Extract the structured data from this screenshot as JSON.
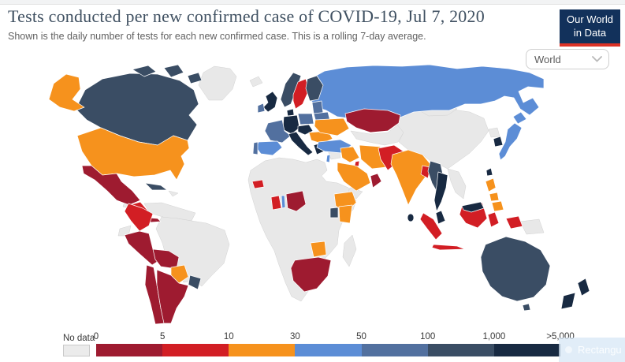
{
  "header": {
    "title": "Tests conducted per new confirmed case of COVID-19, Jul 7, 2020",
    "subtitle": "Shown is the daily number of tests for each new confirmed case. This is a rolling 7-day average.",
    "logo_line1": "Our World",
    "logo_line2": "in Data",
    "logo_bg": "#12315b",
    "logo_accent": "#dc3226"
  },
  "controls": {
    "region_value": "World"
  },
  "legend": {
    "no_data_label": "No data",
    "tick_labels": [
      "0",
      "5",
      "10",
      "30",
      "50",
      "100",
      "1,000",
      ">5,000"
    ]
  },
  "overlay": {
    "watermark_label": "Rectangu"
  },
  "chart_data": {
    "type": "choropleth_map",
    "title": "Tests conducted per new confirmed case of COVID-19",
    "date": "Jul 7, 2020",
    "metric": "Daily number of tests for each new confirmed case, rolling 7-day average",
    "no_data": {
      "label": "No data",
      "color": "#e8e8e8"
    },
    "legend_bins": [
      {
        "key": "0-5",
        "color": "#9e1b30"
      },
      {
        "key": "5-10",
        "color": "#d21e24"
      },
      {
        "key": "10-30",
        "color": "#f6921d"
      },
      {
        "key": "30-50",
        "color": "#5c8dd6"
      },
      {
        "key": "50-100",
        "color": "#52709f"
      },
      {
        "key": "100-1000",
        "color": "#3a4d64"
      },
      {
        "key": "1000+",
        "color": "#182a42"
      }
    ],
    "countries": {
      "greenland": "no-data",
      "iceland": "no-data",
      "canada": "100-1000",
      "united_states": "10-30",
      "mexico": "0-5",
      "cuba": "100-1000",
      "hispaniola": "no-data",
      "guatemala": "no-data",
      "el_salvador": "10-30",
      "central_america": "5-10",
      "panama": "0-5",
      "colombia": "5-10",
      "venezuela_guyanas": "no-data",
      "ecuador": "no-data",
      "brazil": "no-data",
      "peru": "0-5",
      "bolivia": "0-5",
      "paraguay": "10-30",
      "uruguay": "100-1000",
      "chile": "0-5",
      "argentina": "0-5",
      "united_kingdom": "1000+",
      "ireland": "50-100",
      "norway": "100-1000",
      "sweden": "5-10",
      "finland": "100-1000",
      "denmark": "1000+",
      "baltic_states": "50-100",
      "belarus": "50-100",
      "poland": "50-100",
      "germany": "1000+",
      "france": "50-100",
      "spain": "30-50",
      "portugal": "50-100",
      "italy": "1000+",
      "austria_czechia": "1000+",
      "balkans_hungary_romania": "10-30",
      "ukraine": "10-30",
      "greece": "1000+",
      "russia": "30-50",
      "kazakhstan": "0-5",
      "central_asia": "no-data",
      "turkey": "30-50",
      "levant": "no-data",
      "israel": "30-50",
      "iraq": "10-30",
      "iran": "10-30",
      "saudi_arabia": "10-30",
      "kuwait": "5-10",
      "oman": "0-5",
      "yemen": "no-data",
      "africa_other": "no-data",
      "senegal": "5-10",
      "ghana": "5-10",
      "togo": "30-50",
      "nigeria": "0-5",
      "ethiopia": "10-30",
      "uganda": "100-1000",
      "kenya": "10-30",
      "zimbabwe": "10-30",
      "south_africa": "0-5",
      "madagascar": "no-data",
      "pakistan": "5-10",
      "india": "10-30",
      "bangladesh": "5-10",
      "myanmar": "100-1000",
      "sri_lanka": "1000+",
      "china": "no-data",
      "mongolia": "no-data",
      "japan": "30-50",
      "south_korea": "1000+",
      "north_korea": "no-data",
      "taiwan": "1000+",
      "philippines": "10-30",
      "vietnam_laos_cambodia": "no-data",
      "thailand": "1000+",
      "malaysia": "1000+",
      "indonesia": "5-10",
      "papua_new_guinea": "no-data",
      "australia": "100-1000",
      "new_zealand": "1000+"
    }
  }
}
